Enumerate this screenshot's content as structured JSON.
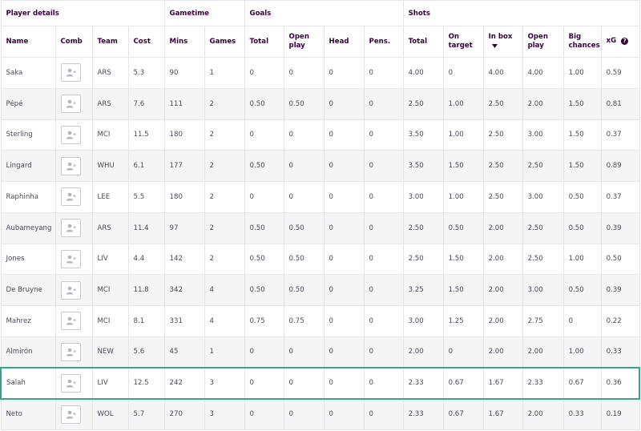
{
  "groups": {
    "player_details": "Player details",
    "gametime": "Gametime",
    "goals": "Goals",
    "shots": "Shots"
  },
  "columns": {
    "name": "Name",
    "comb": "Comb",
    "team": "Team",
    "cost": "Cost",
    "mins": "Mins",
    "games": "Games",
    "goals_total": "Total",
    "goals_open_play": "Open play",
    "head": "Head",
    "pens": "Pens.",
    "shots_total": "Total",
    "on_target": "On target",
    "in_box": "In box",
    "shots_open_play": "Open play",
    "big_chances": "Big chances",
    "xg": "xG"
  },
  "rows": [
    {
      "name": "Saka",
      "team": "ARS",
      "cost": "5.3",
      "mins": "90",
      "games": "1",
      "goals_total": "0",
      "goals_open_play": "0",
      "head": "0",
      "pens": "0",
      "shots_total": "4.00",
      "on_target": "0",
      "in_box": "4.00",
      "shots_open_play": "4.00",
      "big_chances": "1.00",
      "xg": "0.59"
    },
    {
      "name": "Pépé",
      "team": "ARS",
      "cost": "7.6",
      "mins": "111",
      "games": "2",
      "goals_total": "0.50",
      "goals_open_play": "0.50",
      "head": "0",
      "pens": "0",
      "shots_total": "2.50",
      "on_target": "1.00",
      "in_box": "2.50",
      "shots_open_play": "2.00",
      "big_chances": "1.50",
      "xg": "0.81"
    },
    {
      "name": "Sterling",
      "team": "MCI",
      "cost": "11.5",
      "mins": "180",
      "games": "2",
      "goals_total": "0",
      "goals_open_play": "0",
      "head": "0",
      "pens": "0",
      "shots_total": "3.50",
      "on_target": "1.00",
      "in_box": "2.50",
      "shots_open_play": "3.00",
      "big_chances": "1.50",
      "xg": "0.37"
    },
    {
      "name": "Lingard",
      "team": "WHU",
      "cost": "6.1",
      "mins": "177",
      "games": "2",
      "goals_total": "0.50",
      "goals_open_play": "0",
      "head": "0",
      "pens": "0",
      "shots_total": "3.50",
      "on_target": "1.50",
      "in_box": "2.50",
      "shots_open_play": "2.50",
      "big_chances": "1.50",
      "xg": "0.89"
    },
    {
      "name": "Raphinha",
      "team": "LEE",
      "cost": "5.5",
      "mins": "180",
      "games": "2",
      "goals_total": "0",
      "goals_open_play": "0",
      "head": "0",
      "pens": "0",
      "shots_total": "3.00",
      "on_target": "1.00",
      "in_box": "2.50",
      "shots_open_play": "3.00",
      "big_chances": "0.50",
      "xg": "0.37"
    },
    {
      "name": "Aubameyang",
      "team": "ARS",
      "cost": "11.4",
      "mins": "97",
      "games": "2",
      "goals_total": "0.50",
      "goals_open_play": "0.50",
      "head": "0",
      "pens": "0",
      "shots_total": "2.50",
      "on_target": "0.50",
      "in_box": "2.00",
      "shots_open_play": "2.50",
      "big_chances": "0.50",
      "xg": "0.39"
    },
    {
      "name": "Jones",
      "team": "LIV",
      "cost": "4.4",
      "mins": "142",
      "games": "2",
      "goals_total": "0.50",
      "goals_open_play": "0.50",
      "head": "0",
      "pens": "0",
      "shots_total": "2.50",
      "on_target": "1.50",
      "in_box": "2.00",
      "shots_open_play": "2.50",
      "big_chances": "1.00",
      "xg": "0.50"
    },
    {
      "name": "De Bruyne",
      "team": "MCI",
      "cost": "11.8",
      "mins": "342",
      "games": "4",
      "goals_total": "0.50",
      "goals_open_play": "0.50",
      "head": "0",
      "pens": "0",
      "shots_total": "3.25",
      "on_target": "1.50",
      "in_box": "2.00",
      "shots_open_play": "3.00",
      "big_chances": "0.50",
      "xg": "0.39"
    },
    {
      "name": "Mahrez",
      "team": "MCI",
      "cost": "8.1",
      "mins": "331",
      "games": "4",
      "goals_total": "0.75",
      "goals_open_play": "0.75",
      "head": "0",
      "pens": "0",
      "shots_total": "3.00",
      "on_target": "1.25",
      "in_box": "2.00",
      "shots_open_play": "2.75",
      "big_chances": "0",
      "xg": "0.22"
    },
    {
      "name": "Almirón",
      "team": "NEW",
      "cost": "5.6",
      "mins": "45",
      "games": "1",
      "goals_total": "0",
      "goals_open_play": "0",
      "head": "0",
      "pens": "0",
      "shots_total": "2.00",
      "on_target": "0",
      "in_box": "2.00",
      "shots_open_play": "2.00",
      "big_chances": "1.00",
      "xg": "0.33"
    },
    {
      "name": "Salah",
      "team": "LIV",
      "cost": "12.5",
      "mins": "242",
      "games": "3",
      "goals_total": "0",
      "goals_open_play": "0",
      "head": "0",
      "pens": "0",
      "shots_total": "2.33",
      "on_target": "0.67",
      "in_box": "1.67",
      "shots_open_play": "2.33",
      "big_chances": "0.67",
      "xg": "0.36"
    },
    {
      "name": "Neto",
      "team": "WOL",
      "cost": "5.7",
      "mins": "270",
      "games": "3",
      "goals_total": "0",
      "goals_open_play": "0",
      "head": "0",
      "pens": "0",
      "shots_total": "2.33",
      "on_target": "0.67",
      "in_box": "1.67",
      "shots_open_play": "2.00",
      "big_chances": "0.33",
      "xg": "0.19"
    }
  ],
  "highlighted_player": "Salah",
  "sorted_column": "in_box",
  "icons": {
    "comb": "add-to-comparison-icon",
    "sort": "sort-desc-icon",
    "help": "help-icon"
  },
  "colors": {
    "header_text": "#37003c",
    "highlight_border": "#33a68b",
    "row_alt": "#f5f5f6",
    "grid": "#e5e5ea"
  }
}
